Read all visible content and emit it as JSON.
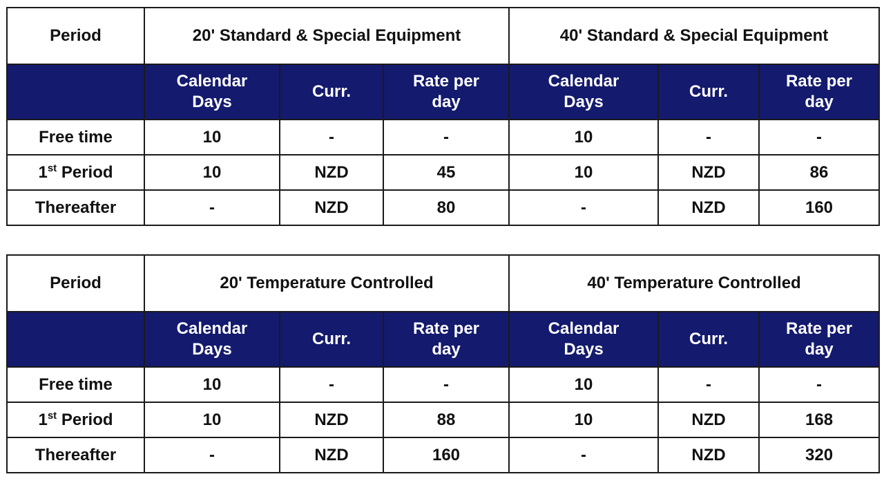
{
  "tables": [
    {
      "period_label": "Period",
      "groups": [
        "20' Standard & Special Equipment",
        "40' Standard & Special Equipment"
      ],
      "subheaders": [
        "Calendar\nDays",
        "Curr.",
        "Rate per\nday"
      ],
      "rows": [
        {
          "period": "Free time",
          "period_sup": "",
          "period_tail": "",
          "cells": [
            "10",
            "-",
            "-",
            "10",
            "-",
            "-"
          ]
        },
        {
          "period": "1",
          "period_sup": "st",
          "period_tail": " Period",
          "cells": [
            "10",
            "NZD",
            "45",
            "10",
            "NZD",
            "86"
          ]
        },
        {
          "period": "Thereafter",
          "period_sup": "",
          "period_tail": "",
          "cells": [
            "-",
            "NZD",
            "80",
            "-",
            "NZD",
            "160"
          ]
        }
      ]
    },
    {
      "period_label": "Period",
      "groups": [
        "20' Temperature Controlled",
        "40' Temperature Controlled"
      ],
      "subheaders": [
        "Calendar\nDays",
        "Curr.",
        "Rate per\nday"
      ],
      "rows": [
        {
          "period": "Free time",
          "period_sup": "",
          "period_tail": "",
          "cells": [
            "10",
            "-",
            "-",
            "10",
            "-",
            "-"
          ]
        },
        {
          "period": "1",
          "period_sup": "st",
          "period_tail": " Period",
          "cells": [
            "10",
            "NZD",
            "88",
            "10",
            "NZD",
            "168"
          ]
        },
        {
          "period": "Thereafter",
          "period_sup": "",
          "period_tail": "",
          "cells": [
            "-",
            "NZD",
            "160",
            "-",
            "NZD",
            "320"
          ]
        }
      ]
    }
  ],
  "colors": {
    "subheader_background": "#141a6e",
    "subheader_text": "#ffffff",
    "border": "#1a1a1a",
    "text": "#111111"
  }
}
